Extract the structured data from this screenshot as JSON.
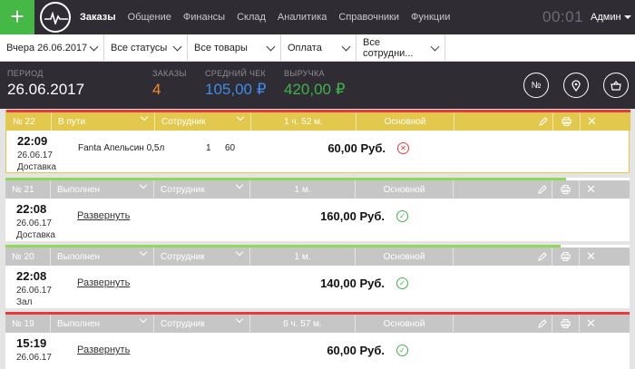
{
  "topbar": {
    "nav": [
      "Заказы",
      "Общение",
      "Финансы",
      "Склад",
      "Аналитика",
      "Справочники",
      "Функции"
    ],
    "clock": "00:01",
    "user": "Админ"
  },
  "filters": {
    "date": "Вчера 26.06.2017",
    "status": "Все статусы",
    "goods": "Все товары",
    "payment": "Оплата",
    "staff": "Все сотрудни..."
  },
  "summary": {
    "period_label": "ПЕРИОД",
    "period_value": "26.06.2017",
    "orders_label": "ЗАКАЗЫ",
    "orders_value": "4",
    "avg_label": "СРЕДНИЙ ЧЕК",
    "avg_value": "105,00 ₽",
    "revenue_label": "ВЫРУЧКА",
    "revenue_value": "420,00 ₽",
    "btn1": "№"
  },
  "colors": {
    "accent_green": "#46b845",
    "orders_orange": "#f08a2c",
    "avg_blue": "#3e8ce8",
    "revenue_green": "#3fb24a",
    "header_yellow": "#e2c84c",
    "header_gray": "#c6c6c6",
    "line_red": "#e53b3b",
    "line_green": "#8ed85a"
  },
  "orders": [
    {
      "number": "№ 22",
      "status": "В пути",
      "staff": "Сотрудник",
      "duration": "1 ч. 52 м.",
      "kind": "Основной",
      "time": "22:09",
      "date": "26.06.17",
      "type": "Доставка",
      "item": "Fanta Апельсин 0,5л",
      "qty": "1",
      "price": "60",
      "sum": "60,00 Руб.",
      "status_icon": "cancel-icon"
    },
    {
      "number": "№ 21",
      "status": "Выполнен",
      "staff": "Сотрудник",
      "duration": "1 м.",
      "kind": "Основной",
      "time": "22:08",
      "date": "26.06.17",
      "type": "Доставка",
      "link": "Развернуть",
      "sum": "160,00 Руб.",
      "status_icon": "check-icon"
    },
    {
      "number": "№ 20",
      "status": "Выполнен",
      "staff": "Сотрудник",
      "duration": "1 м.",
      "kind": "Основной",
      "time": "22:08",
      "date": "26.06.17",
      "type": "Зал",
      "link": "Развернуть",
      "sum": "140,00 Руб.",
      "status_icon": "check-icon"
    },
    {
      "number": "№ 19",
      "status": "Выполнен",
      "staff": "Сотрудник",
      "duration": "6 ч. 57 м.",
      "kind": "Основной",
      "time": "15:19",
      "date": "26.06.17",
      "type": "",
      "link": "Развернуть",
      "sum": "60,00 Руб.",
      "status_icon": "check-icon"
    }
  ]
}
